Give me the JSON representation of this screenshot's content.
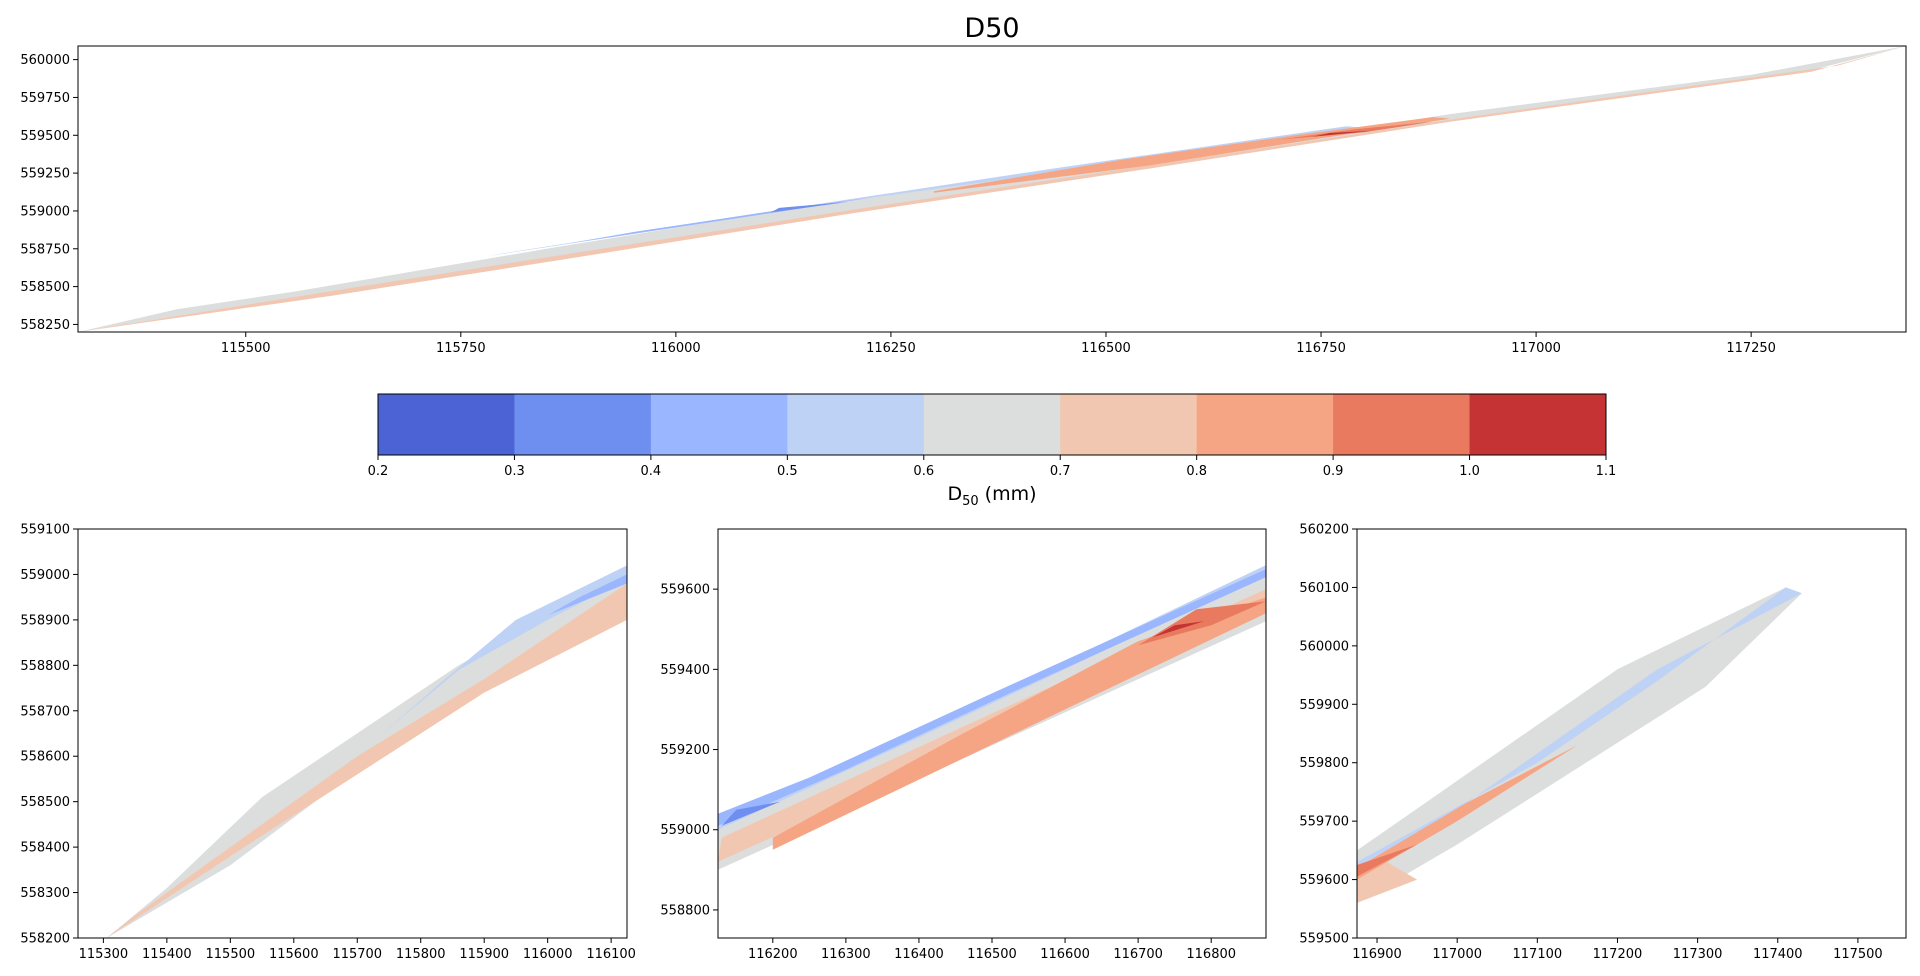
{
  "chart_data": [
    {
      "type": "contour",
      "title": "D50",
      "xticks": [
        115500,
        115750,
        116000,
        116250,
        116500,
        116750,
        117000,
        117250
      ],
      "yticks": [
        558250,
        558500,
        558750,
        559000,
        559250,
        559500,
        559750,
        560000
      ],
      "xlim": [
        115305,
        117430
      ],
      "ylim": [
        558200,
        560090
      ],
      "bands": [
        {
          "level": 0.6,
          "points": [
            [
              115305,
              558200
            ],
            [
              115420,
              558350
            ],
            [
              115560,
              558470
            ],
            [
              115860,
              558760
            ],
            [
              116230,
              559100
            ],
            [
              116550,
              559330
            ],
            [
              116900,
              559640
            ],
            [
              117250,
              559900
            ],
            [
              117430,
              560090
            ],
            [
              117320,
              559930
            ],
            [
              116910,
              559600
            ],
            [
              116550,
              559280
            ],
            [
              116200,
              559000
            ],
            [
              115870,
              558700
            ],
            [
              115600,
              558470
            ],
            [
              115305,
              558200
            ]
          ]
        },
        {
          "level": 0.5,
          "points": [
            [
              115780,
              558700
            ],
            [
              116000,
              558890
            ],
            [
              116230,
              559090
            ],
            [
              116550,
              559340
            ],
            [
              116800,
              559550
            ],
            [
              116780,
              559560
            ],
            [
              116450,
              559290
            ],
            [
              116100,
              558990
            ],
            [
              115800,
              558720
            ]
          ]
        },
        {
          "level": 0.4,
          "points": [
            [
              115880,
              558790
            ],
            [
              116080,
              558960
            ],
            [
              116230,
              559090
            ],
            [
              116150,
              559030
            ],
            [
              115950,
              558860
            ]
          ]
        },
        {
          "level": 0.3,
          "points": [
            [
              116110,
              558990
            ],
            [
              116200,
              559060
            ],
            [
              116120,
              559020
            ]
          ]
        },
        {
          "level": 0.7,
          "points": [
            [
              115305,
              558200
            ],
            [
              115600,
              558440
            ],
            [
              115870,
              558680
            ],
            [
              116200,
              558980
            ],
            [
              116550,
              559280
            ],
            [
              116900,
              559590
            ],
            [
              117320,
              559920
            ],
            [
              117430,
              560090
            ],
            [
              117350,
              559960
            ],
            [
              116920,
              559620
            ],
            [
              116560,
              559310
            ],
            [
              116220,
              559020
            ],
            [
              115880,
              558720
            ],
            [
              115610,
              558480
            ],
            [
              115305,
              558200
            ]
          ]
        },
        {
          "level": 0.8,
          "points": [
            [
              116300,
              559120
            ],
            [
              116550,
              559300
            ],
            [
              116750,
              559480
            ],
            [
              116900,
              559610
            ],
            [
              116880,
              559620
            ],
            [
              116720,
              559500
            ],
            [
              116520,
              559340
            ],
            [
              116300,
              559130
            ]
          ]
        },
        {
          "level": 0.9,
          "points": [
            [
              116700,
              559470
            ],
            [
              116800,
              559520
            ],
            [
              116880,
              559590
            ],
            [
              116790,
              559540
            ]
          ]
        },
        {
          "level": 1.0,
          "points": [
            [
              116740,
              559490
            ],
            [
              116810,
              559530
            ],
            [
              116760,
              559515
            ]
          ]
        }
      ]
    },
    {
      "type": "contour",
      "xticks": [
        115300,
        115400,
        115500,
        115600,
        115700,
        115800,
        115900,
        116000,
        116100
      ],
      "yticks": [
        558200,
        558300,
        558400,
        558500,
        558600,
        558700,
        558800,
        558900,
        559000,
        559100
      ],
      "xlim": [
        115260,
        116125
      ],
      "ylim": [
        558200,
        559100
      ],
      "bands": [
        {
          "level": 0.6,
          "points": [
            [
              115305,
              558200
            ],
            [
              115400,
              558310
            ],
            [
              115550,
              558510
            ],
            [
              115860,
              558800
            ],
            [
              116000,
              558910
            ],
            [
              116125,
              559000
            ],
            [
              116125,
              558910
            ],
            [
              115900,
              558760
            ],
            [
              115700,
              558570
            ],
            [
              115500,
              558360
            ],
            [
              115305,
              558200
            ]
          ]
        },
        {
          "level": 0.7,
          "points": [
            [
              115305,
              558200
            ],
            [
              115500,
              558380
            ],
            [
              115700,
              558560
            ],
            [
              115900,
              558740
            ],
            [
              116125,
              558900
            ],
            [
              116125,
              558980
            ],
            [
              115900,
              558770
            ],
            [
              115700,
              558600
            ],
            [
              115520,
              558420
            ],
            [
              115350,
              558250
            ]
          ]
        },
        {
          "level": 0.5,
          "points": [
            [
              115740,
              558650
            ],
            [
              115860,
              558790
            ],
            [
              116000,
              558900
            ],
            [
              116125,
              558990
            ],
            [
              116125,
              559020
            ],
            [
              115950,
              558900
            ],
            [
              115830,
              558760
            ]
          ]
        },
        {
          "level": 0.4,
          "points": [
            [
              116000,
              558910
            ],
            [
              116125,
              558980
            ],
            [
              116125,
              559000
            ],
            [
              116050,
              558950
            ]
          ]
        }
      ]
    },
    {
      "type": "contour",
      "xticks": [
        116200,
        116300,
        116400,
        116500,
        116600,
        116700,
        116800
      ],
      "yticks": [
        558800,
        559000,
        559200,
        559400,
        559600
      ],
      "xlim": [
        116125,
        116875
      ],
      "ylim": [
        558730,
        559750
      ],
      "bands": [
        {
          "level": 0.6,
          "points": [
            [
              116125,
              558900
            ],
            [
              116500,
              559210
            ],
            [
              116875,
              559520
            ],
            [
              116875,
              559650
            ],
            [
              116500,
              559330
            ],
            [
              116125,
              559020
            ]
          ]
        },
        {
          "level": 0.5,
          "points": [
            [
              116125,
              559000
            ],
            [
              116400,
              559230
            ],
            [
              116600,
              559400
            ],
            [
              116875,
              559640
            ],
            [
              116875,
              559660
            ],
            [
              116600,
              559420
            ],
            [
              116350,
              559210
            ],
            [
              116125,
              559030
            ]
          ]
        },
        {
          "level": 0.4,
          "points": [
            [
              116125,
              559010
            ],
            [
              116300,
              559150
            ],
            [
              116500,
              559320
            ],
            [
              116875,
              559630
            ],
            [
              116875,
              559650
            ],
            [
              116500,
              559340
            ],
            [
              116250,
              559130
            ],
            [
              116125,
              559040
            ]
          ]
        },
        {
          "level": 0.3,
          "points": [
            [
              116130,
              559010
            ],
            [
              116210,
              559070
            ],
            [
              116150,
              559050
            ]
          ]
        },
        {
          "level": 0.7,
          "points": [
            [
              116125,
              558920
            ],
            [
              116500,
              559230
            ],
            [
              116875,
              559560
            ],
            [
              116875,
              559600
            ],
            [
              116500,
              559290
            ],
            [
              116130,
              558980
            ]
          ]
        },
        {
          "level": 0.8,
          "points": [
            [
              116200,
              558950
            ],
            [
              116600,
              559300
            ],
            [
              116875,
              559540
            ],
            [
              116875,
              559580
            ],
            [
              116700,
              559470
            ],
            [
              116450,
              559230
            ],
            [
              116200,
              558980
            ]
          ]
        },
        {
          "level": 0.9,
          "points": [
            [
              116700,
              559460
            ],
            [
              116800,
              559510
            ],
            [
              116875,
              559570
            ],
            [
              116780,
              559550
            ]
          ]
        },
        {
          "level": 1.0,
          "points": [
            [
              116720,
              559480
            ],
            [
              116790,
              559520
            ],
            [
              116750,
              559510
            ]
          ]
        }
      ]
    },
    {
      "type": "contour",
      "xticks": [
        116900,
        117000,
        117100,
        117200,
        117300,
        117400,
        117500
      ],
      "yticks": [
        559500,
        559600,
        559700,
        559800,
        559900,
        560000,
        560100,
        560200
      ],
      "xlim": [
        116875,
        117560
      ],
      "ylim": [
        559500,
        560200
      ],
      "bands": [
        {
          "level": 0.6,
          "points": [
            [
              116875,
              559560
            ],
            [
              117000,
              559660
            ],
            [
              117310,
              559930
            ],
            [
              117430,
              560090
            ],
            [
              117410,
              560100
            ],
            [
              117200,
              559960
            ],
            [
              116875,
              559650
            ]
          ]
        },
        {
          "level": 0.5,
          "points": [
            [
              116875,
              559630
            ],
            [
              117100,
              559800
            ],
            [
              117250,
              559940
            ],
            [
              117410,
              560100
            ],
            [
              117430,
              560090
            ],
            [
              117250,
              559960
            ],
            [
              117000,
              559720
            ],
            [
              116875,
              559600
            ]
          ]
        },
        {
          "level": 0.7,
          "points": [
            [
              116875,
              559560
            ],
            [
              116950,
              559600
            ],
            [
              116900,
              559640
            ],
            [
              116875,
              559620
            ]
          ]
        },
        {
          "level": 0.8,
          "points": [
            [
              116875,
              559600
            ],
            [
              117000,
              559700
            ],
            [
              117150,
              559830
            ],
            [
              117010,
              559730
            ],
            [
              116875,
              559620
            ]
          ]
        },
        {
          "level": 0.9,
          "points": [
            [
              116875,
              559605
            ],
            [
              116950,
              559660
            ],
            [
              116875,
              559625
            ]
          ]
        }
      ]
    },
    {
      "type": "colorbar",
      "label_main": "D",
      "label_sub": "50",
      "label_unit": " (mm)",
      "ticks": [
        0.2,
        0.3,
        0.4,
        0.5,
        0.6,
        0.7,
        0.8,
        0.9,
        1.0,
        1.1
      ],
      "tick_labels": [
        "0.2",
        "0.3",
        "0.4",
        "0.5",
        "0.6",
        "0.7",
        "0.8",
        "0.9",
        "1.0",
        "1.1"
      ],
      "colors": [
        "#4c63d5",
        "#6f8ff0",
        "#99b6fe",
        "#bed2f6",
        "#dcdddd",
        "#f2c7b1",
        "#f5a583",
        "#e97a5f",
        "#c53334"
      ]
    }
  ]
}
